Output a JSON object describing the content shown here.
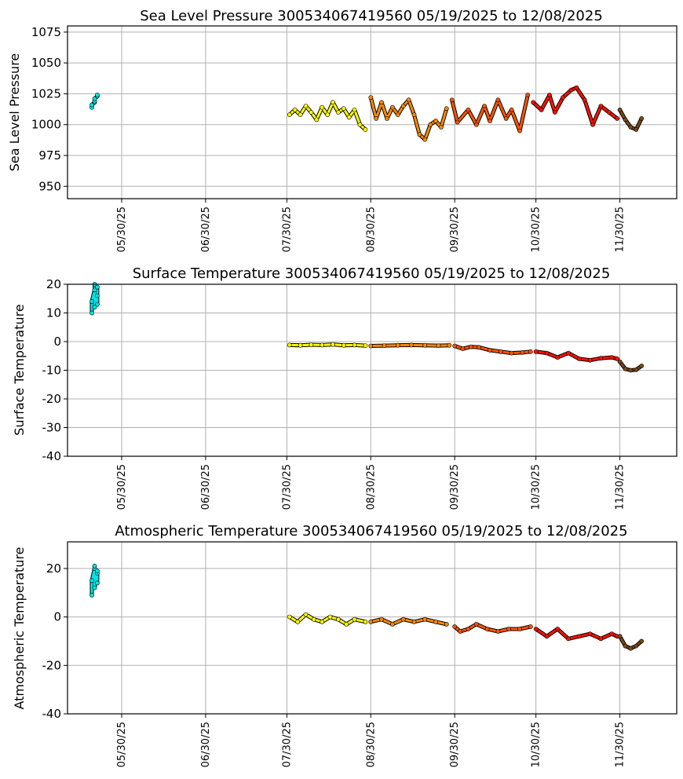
{
  "chart_data": [
    {
      "type": "scatter",
      "title": "Sea Level Pressure 300534067419560  05/19/2025 to 12/08/2025",
      "xlabel": "",
      "ylabel": "Sea Level Pressure",
      "ylim": [
        940,
        1080
      ],
      "yticks": [
        950,
        975,
        1000,
        1025,
        1050,
        1075
      ],
      "xlim": [
        "2025-05-10",
        "2025-12-21"
      ],
      "xticks": [
        "2025-05-30",
        "2025-06-30",
        "2025-07-30",
        "2025-08-30",
        "2025-09-30",
        "2025-10-30",
        "2025-11-30"
      ],
      "xtick_labels": [
        "05/30/25",
        "06/30/25",
        "07/30/25",
        "08/30/25",
        "09/30/25",
        "10/30/25",
        "11/30/25"
      ],
      "grid": true,
      "series": [
        {
          "color": "#00e5e5",
          "x": [
            "2025-05-19",
            "2025-05-19",
            "2025-05-20",
            "2025-05-20",
            "2025-05-20",
            "2025-05-21",
            "2025-05-21"
          ],
          "y": [
            1014,
            1016,
            1018,
            1019,
            1021,
            1023,
            1024
          ]
        },
        {
          "color": "#ffff00",
          "x": [
            "2025-07-31",
            "2025-08-02",
            "2025-08-04",
            "2025-08-06",
            "2025-08-08",
            "2025-08-10",
            "2025-08-12",
            "2025-08-14",
            "2025-08-16",
            "2025-08-18",
            "2025-08-20",
            "2025-08-22",
            "2025-08-24",
            "2025-08-26",
            "2025-08-28"
          ],
          "y": [
            1008,
            1012,
            1008,
            1015,
            1010,
            1004,
            1014,
            1008,
            1018,
            1010,
            1013,
            1006,
            1012,
            1000,
            996
          ]
        },
        {
          "color": "#ff8800",
          "x": [
            "2025-08-30",
            "2025-09-01",
            "2025-09-03",
            "2025-09-05",
            "2025-09-07",
            "2025-09-09",
            "2025-09-11",
            "2025-09-13",
            "2025-09-15",
            "2025-09-17",
            "2025-09-19",
            "2025-09-21",
            "2025-09-23",
            "2025-09-25",
            "2025-09-27"
          ],
          "y": [
            1022,
            1005,
            1018,
            1005,
            1014,
            1008,
            1015,
            1020,
            1008,
            992,
            988,
            1000,
            1003,
            998,
            1013
          ]
        },
        {
          "color": "#ff5500",
          "x": [
            "2025-09-29",
            "2025-10-01",
            "2025-10-05",
            "2025-10-08",
            "2025-10-11",
            "2025-10-13",
            "2025-10-16",
            "2025-10-19",
            "2025-10-21",
            "2025-10-24",
            "2025-10-27"
          ],
          "y": [
            1020,
            1002,
            1012,
            1000,
            1015,
            1003,
            1020,
            1005,
            1012,
            995,
            1024
          ]
        },
        {
          "color": "#ff1100",
          "x": [
            "2025-10-29",
            "2025-11-01",
            "2025-11-04",
            "2025-11-06",
            "2025-11-09",
            "2025-11-12",
            "2025-11-14",
            "2025-11-17",
            "2025-11-20",
            "2025-11-23",
            "2025-11-26",
            "2025-11-29"
          ],
          "y": [
            1018,
            1012,
            1024,
            1010,
            1022,
            1028,
            1030,
            1020,
            1000,
            1015,
            1010,
            1005
          ]
        },
        {
          "color": "#7a4a1a",
          "x": [
            "2025-11-30",
            "2025-12-02",
            "2025-12-04",
            "2025-12-06",
            "2025-12-08"
          ],
          "y": [
            1012,
            1004,
            998,
            996,
            1005
          ]
        }
      ]
    },
    {
      "type": "scatter",
      "title": "Surface Temperature 300534067419560  05/19/2025 to 12/08/2025",
      "xlabel": "",
      "ylabel": "Surface Temperature",
      "ylim": [
        -40,
        20
      ],
      "yticks": [
        -40,
        -30,
        -20,
        -10,
        0,
        10,
        20
      ],
      "xlim": [
        "2025-05-10",
        "2025-12-21"
      ],
      "xticks": [
        "2025-05-30",
        "2025-06-30",
        "2025-07-30",
        "2025-08-30",
        "2025-09-30",
        "2025-10-30",
        "2025-11-30"
      ],
      "xtick_labels": [
        "05/30/25",
        "06/30/25",
        "07/30/25",
        "08/30/25",
        "09/30/25",
        "10/30/25",
        "11/30/25"
      ],
      "grid": true,
      "series": [
        {
          "color": "#00e5e5",
          "x": [
            "2025-05-19",
            "2025-05-19",
            "2025-05-20",
            "2025-05-20",
            "2025-05-20",
            "2025-05-21",
            "2025-05-21",
            "2025-05-21"
          ],
          "y": [
            10,
            14,
            18,
            20,
            12,
            16,
            13,
            19
          ]
        },
        {
          "color": "#ffff00",
          "x": [
            "2025-07-31",
            "2025-08-04",
            "2025-08-08",
            "2025-08-12",
            "2025-08-16",
            "2025-08-20",
            "2025-08-24",
            "2025-08-28"
          ],
          "y": [
            -1.2,
            -1.3,
            -1.1,
            -1.2,
            -1.0,
            -1.3,
            -1.2,
            -1.4
          ]
        },
        {
          "color": "#ff8800",
          "x": [
            "2025-08-30",
            "2025-09-04",
            "2025-09-09",
            "2025-09-14",
            "2025-09-19",
            "2025-09-24",
            "2025-09-28"
          ],
          "y": [
            -1.5,
            -1.4,
            -1.3,
            -1.2,
            -1.3,
            -1.4,
            -1.3
          ]
        },
        {
          "color": "#ff5500",
          "x": [
            "2025-09-30",
            "2025-10-03",
            "2025-10-06",
            "2025-10-09",
            "2025-10-13",
            "2025-10-17",
            "2025-10-21",
            "2025-10-25",
            "2025-10-28"
          ],
          "y": [
            -1.5,
            -2.5,
            -1.8,
            -2.0,
            -3.0,
            -3.5,
            -4.0,
            -3.8,
            -3.5
          ]
        },
        {
          "color": "#ff1100",
          "x": [
            "2025-10-30",
            "2025-11-03",
            "2025-11-07",
            "2025-11-11",
            "2025-11-15",
            "2025-11-19",
            "2025-11-23",
            "2025-11-27",
            "2025-11-29"
          ],
          "y": [
            -3.5,
            -4.0,
            -5.5,
            -4.0,
            -6.0,
            -6.5,
            -5.8,
            -5.5,
            -6.0
          ]
        },
        {
          "color": "#7a4a1a",
          "x": [
            "2025-11-30",
            "2025-12-02",
            "2025-12-04",
            "2025-12-06",
            "2025-12-08"
          ],
          "y": [
            -7.0,
            -9.5,
            -10.0,
            -9.8,
            -8.5
          ]
        }
      ]
    },
    {
      "type": "scatter",
      "title": "Atmospheric Temperature 300534067419560  05/19/2025 to 12/08/2025",
      "xlabel": "",
      "ylabel": "Atmospheric Temperature",
      "ylim": [
        -40,
        31
      ],
      "yticks": [
        -40,
        -20,
        0,
        20
      ],
      "xlim": [
        "2025-05-10",
        "2025-12-21"
      ],
      "xticks": [
        "2025-05-30",
        "2025-06-30",
        "2025-07-30",
        "2025-08-30",
        "2025-09-30",
        "2025-10-30",
        "2025-11-30"
      ],
      "xtick_labels": [
        "05/30/25",
        "06/30/25",
        "07/30/25",
        "08/30/25",
        "09/30/25",
        "10/30/25",
        "11/30/25"
      ],
      "grid": true,
      "series": [
        {
          "color": "#00e5e5",
          "x": [
            "2025-05-19",
            "2025-05-19",
            "2025-05-20",
            "2025-05-20",
            "2025-05-20",
            "2025-05-21",
            "2025-05-21",
            "2025-05-21"
          ],
          "y": [
            9,
            15,
            20,
            21,
            12,
            18,
            14,
            19
          ]
        },
        {
          "color": "#ffff00",
          "x": [
            "2025-07-31",
            "2025-08-03",
            "2025-08-06",
            "2025-08-09",
            "2025-08-12",
            "2025-08-15",
            "2025-08-18",
            "2025-08-21",
            "2025-08-24",
            "2025-08-28"
          ],
          "y": [
            0,
            -2,
            1,
            -1,
            -2,
            0,
            -1,
            -3,
            -1,
            -2
          ]
        },
        {
          "color": "#ff8800",
          "x": [
            "2025-08-30",
            "2025-09-03",
            "2025-09-07",
            "2025-09-11",
            "2025-09-15",
            "2025-09-19",
            "2025-09-23",
            "2025-09-27"
          ],
          "y": [
            -2,
            -1,
            -3,
            -1,
            -2,
            -1,
            -2,
            -3
          ]
        },
        {
          "color": "#ff5500",
          "x": [
            "2025-09-30",
            "2025-10-02",
            "2025-10-05",
            "2025-10-08",
            "2025-10-12",
            "2025-10-16",
            "2025-10-20",
            "2025-10-24",
            "2025-10-28"
          ],
          "y": [
            -4,
            -6,
            -5,
            -3,
            -5,
            -6,
            -5,
            -5,
            -4
          ]
        },
        {
          "color": "#ff1100",
          "x": [
            "2025-10-30",
            "2025-11-03",
            "2025-11-07",
            "2025-11-11",
            "2025-11-15",
            "2025-11-19",
            "2025-11-23",
            "2025-11-27",
            "2025-11-29"
          ],
          "y": [
            -5,
            -8,
            -5,
            -9,
            -8,
            -7,
            -9,
            -7,
            -8
          ]
        },
        {
          "color": "#7a4a1a",
          "x": [
            "2025-11-30",
            "2025-12-02",
            "2025-12-04",
            "2025-12-06",
            "2025-12-08"
          ],
          "y": [
            -8,
            -12,
            -13,
            -12,
            -10
          ]
        }
      ]
    }
  ]
}
